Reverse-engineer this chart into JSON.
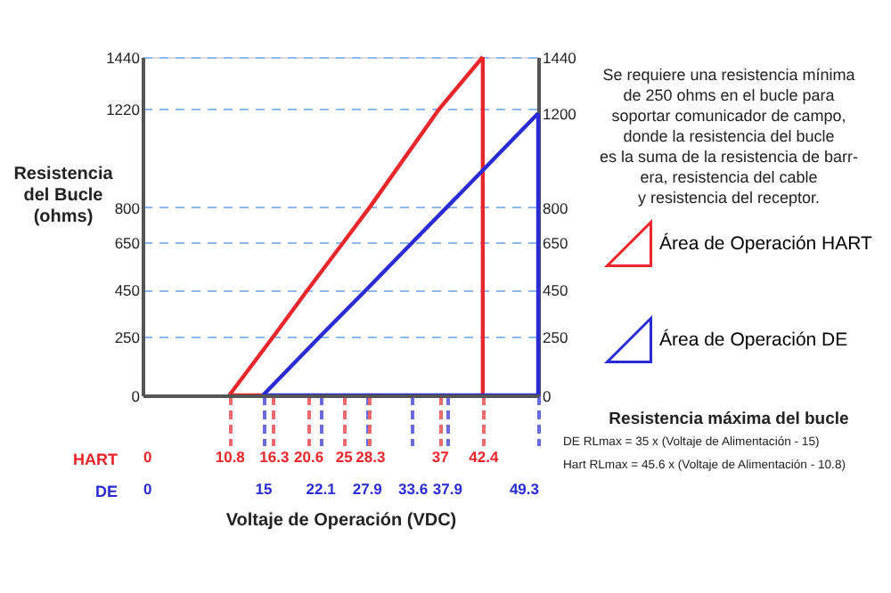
{
  "chart_data": {
    "type": "line",
    "xlabel": "Voltaje de Operación (VDC)",
    "ylabel": "Resistencia del Bucle (ohms)",
    "xlim": [
      0,
      49.3
    ],
    "xticks": [
      0,
      10.8,
      16.3,
      20.6,
      25,
      28.3,
      37,
      42.4
    ],
    "x2lim": [
      0,
      49.3
    ],
    "x2ticks": [
      0,
      15,
      22.1,
      27.9,
      33.6,
      37.9,
      49.3
    ],
    "ylim": [
      0,
      1440
    ],
    "yticks": [
      0,
      250,
      450,
      650,
      800,
      1220,
      {
        "value": 1440,
        "label": "1440"
      }
    ],
    "y2lim": [
      0,
      1440
    ],
    "y2ticks": [
      0,
      250,
      450,
      650,
      800,
      1200,
      {
        "value": 1440,
        "label": "1440"
      }
    ],
    "grid": "y",
    "legend": "right",
    "marker": "none",
    "line_style": "solid",
    "series": [
      {
        "name": "Área de Operación HART",
        "color": "#e8262b",
        "x": [
          10.8,
          16.3,
          20.6,
          25,
          28.3,
          37,
          42.4
        ],
        "values": [
          0,
          250,
          450,
          650,
          800,
          1220,
          1440
        ]
      },
      {
        "color": "#e8262b",
        "x": [
          42.4,
          42.4
        ],
        "values": [
          1440,
          0
        ]
      },
      {
        "color": "#e8262b",
        "x": [
          10.8,
          15
        ],
        "values": [
          0,
          0
        ]
      },
      {
        "name": "Área de Operación DE",
        "color": "#2b2bd6",
        "axis": "y2",
        "x": [
          15,
          22.1,
          27.9,
          33.6,
          37.9,
          49.3
        ],
        "values": [
          0,
          250,
          450,
          650,
          800,
          1200
        ]
      },
      {
        "color": "#2b2bd6",
        "axis": "y2",
        "x": [
          49.3,
          49.3
        ],
        "values": [
          1200,
          0
        ]
      },
      {
        "color": "#2b2bd6",
        "axis": "y2",
        "x": [
          15,
          49.3
        ],
        "values": [
          0,
          0
        ]
      }
    ],
    "annotations": [
      "Se requiere una resistencia mínima\nde 250 ohms en el bucle para\nsoportar comunicador de campo,\ndonde la resistencia del bucle\nes la suma de la resistencia de barr-\nera, resistencia del cable\ny resistencia del receptor.",
      "Resistencia máxima del bucle",
      "DE RLmax = 35 x (Voltaje de Alimentación - 15)",
      "Hart RLmax = 45.6 x (Voltaje de Alimentación - 10.8)",
      "HART",
      "DE"
    ]
  }
}
